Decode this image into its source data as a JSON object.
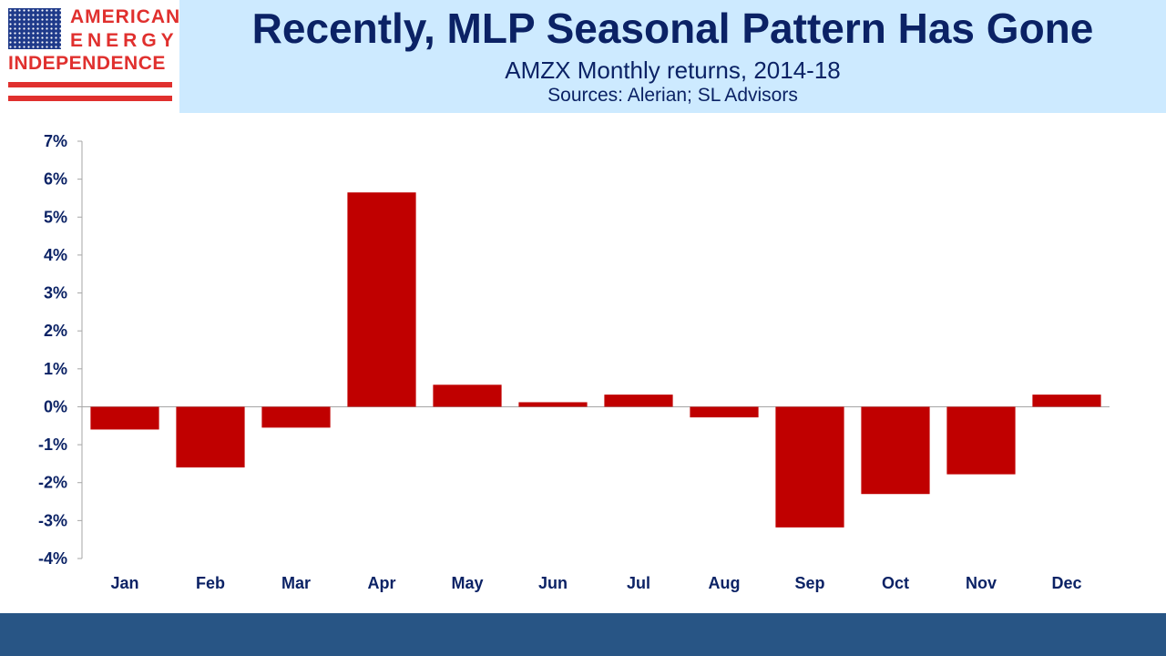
{
  "logo": {
    "line1": "AMERICAN",
    "line2": "ENERGY",
    "line3": "INDEPENDENCE"
  },
  "header": {
    "title": "Recently, MLP Seasonal Pattern Has Gone",
    "subtitle": "AMZX Monthly returns, 2014-18",
    "source": "Sources: Alerian; SL Advisors"
  },
  "colors": {
    "bar": "#c00000",
    "title": "#0b2265",
    "header_band": "#cdeaff",
    "footer_band": "#285585",
    "logo_red": "#e0302e"
  },
  "chart_data": {
    "type": "bar",
    "categories": [
      "Jan",
      "Feb",
      "Mar",
      "Apr",
      "May",
      "Jun",
      "Jul",
      "Aug",
      "Sep",
      "Oct",
      "Nov",
      "Dec"
    ],
    "values": [
      -0.6,
      -1.6,
      -0.55,
      5.65,
      0.58,
      0.12,
      0.32,
      -0.28,
      -3.18,
      -2.3,
      -1.78,
      0.32
    ],
    "ylim": [
      -4,
      7
    ],
    "yticks": [
      7,
      6,
      5,
      4,
      3,
      2,
      1,
      0,
      -1,
      -2,
      -3,
      -4
    ],
    "ytick_labels": [
      "7%",
      "6%",
      "5%",
      "4%",
      "3%",
      "2%",
      "1%",
      "0%",
      "-1%",
      "-2%",
      "-3%",
      "-4%"
    ],
    "grid": false,
    "legend": "none",
    "title": "",
    "xlabel": "",
    "ylabel": ""
  }
}
